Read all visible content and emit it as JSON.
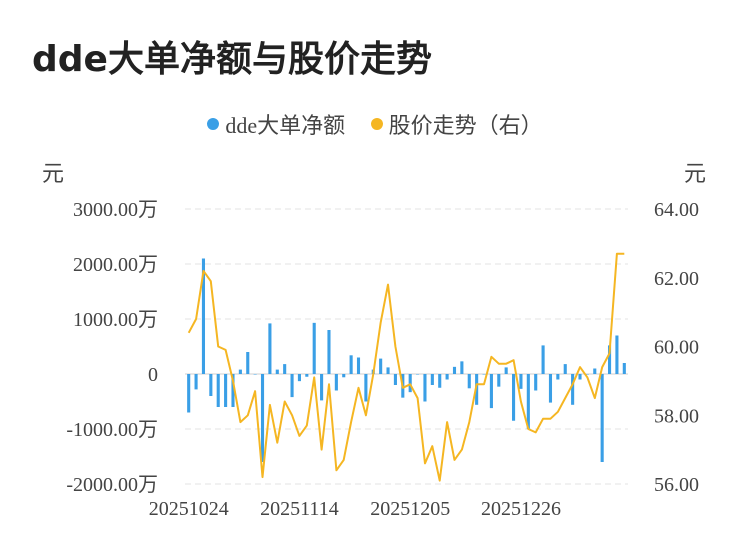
{
  "title": "dde大单净额与股价走势",
  "legend": {
    "series1": "dde大单净额",
    "series2": "股价走势（右）"
  },
  "units": {
    "left": "元",
    "right": "元"
  },
  "colors": {
    "bar": "#3a9fe6",
    "line": "#f5b622",
    "grid": "#e3e3e3",
    "zero": "#cfcfcf"
  },
  "chart_data": {
    "type": "bar",
    "title": "dde大单净额与股价走势",
    "y_left": {
      "label": "元",
      "ylim": [
        -2000,
        3000
      ],
      "ticks": [
        3000,
        2000,
        1000,
        0,
        -1000,
        -2000
      ],
      "tick_labels": [
        "3000.00万",
        "2000.00万",
        "1000.00万",
        "0",
        "-1000.00万",
        "-2000.00万"
      ]
    },
    "y_right": {
      "label": "元",
      "ylim": [
        56,
        64
      ],
      "ticks": [
        64,
        62,
        60,
        58,
        56
      ],
      "tick_labels": [
        "64.00",
        "62.00",
        "60.00",
        "58.00",
        "56.00"
      ]
    },
    "x_tick_labels": [
      "20251024",
      "20251114",
      "20251205",
      "20251226"
    ],
    "x_tick_index": [
      0,
      15,
      30,
      45
    ],
    "grid": true,
    "legend_position": "top",
    "series": [
      {
        "name": "dde大单净额",
        "kind": "bar",
        "axis": "left",
        "values": [
          -700,
          -280,
          2100,
          -400,
          -600,
          -600,
          -600,
          80,
          400,
          0,
          -1600,
          920,
          80,
          180,
          -420,
          -130,
          -50,
          930,
          -480,
          800,
          -300,
          -60,
          340,
          300,
          -500,
          80,
          280,
          120,
          -200,
          -430,
          -330,
          0,
          -500,
          -200,
          -250,
          -100,
          130,
          230,
          -260,
          -560,
          0,
          -620,
          -230,
          120,
          -850,
          -270,
          -1000,
          -300,
          520,
          -520,
          -100,
          180,
          -560,
          -100,
          0,
          100,
          -1600,
          520,
          700,
          200
        ]
      },
      {
        "name": "股价走势（右）",
        "kind": "line",
        "axis": "right",
        "values": [
          60.4,
          60.8,
          62.2,
          61.9,
          60.0,
          59.9,
          59.0,
          57.8,
          58.0,
          58.7,
          56.2,
          58.3,
          57.2,
          58.4,
          58.0,
          57.4,
          57.7,
          59.1,
          57.0,
          58.9,
          56.4,
          56.7,
          57.8,
          58.8,
          58.0,
          59.2,
          60.7,
          61.8,
          60.0,
          58.8,
          58.9,
          58.5,
          56.6,
          57.1,
          56.1,
          57.8,
          56.7,
          57.0,
          57.8,
          58.9,
          58.9,
          59.7,
          59.5,
          59.5,
          59.6,
          58.4,
          57.6,
          57.5,
          57.9,
          57.9,
          58.1,
          58.5,
          58.9,
          59.4,
          59.1,
          58.5,
          59.4,
          59.8,
          62.7,
          62.7
        ]
      }
    ]
  }
}
